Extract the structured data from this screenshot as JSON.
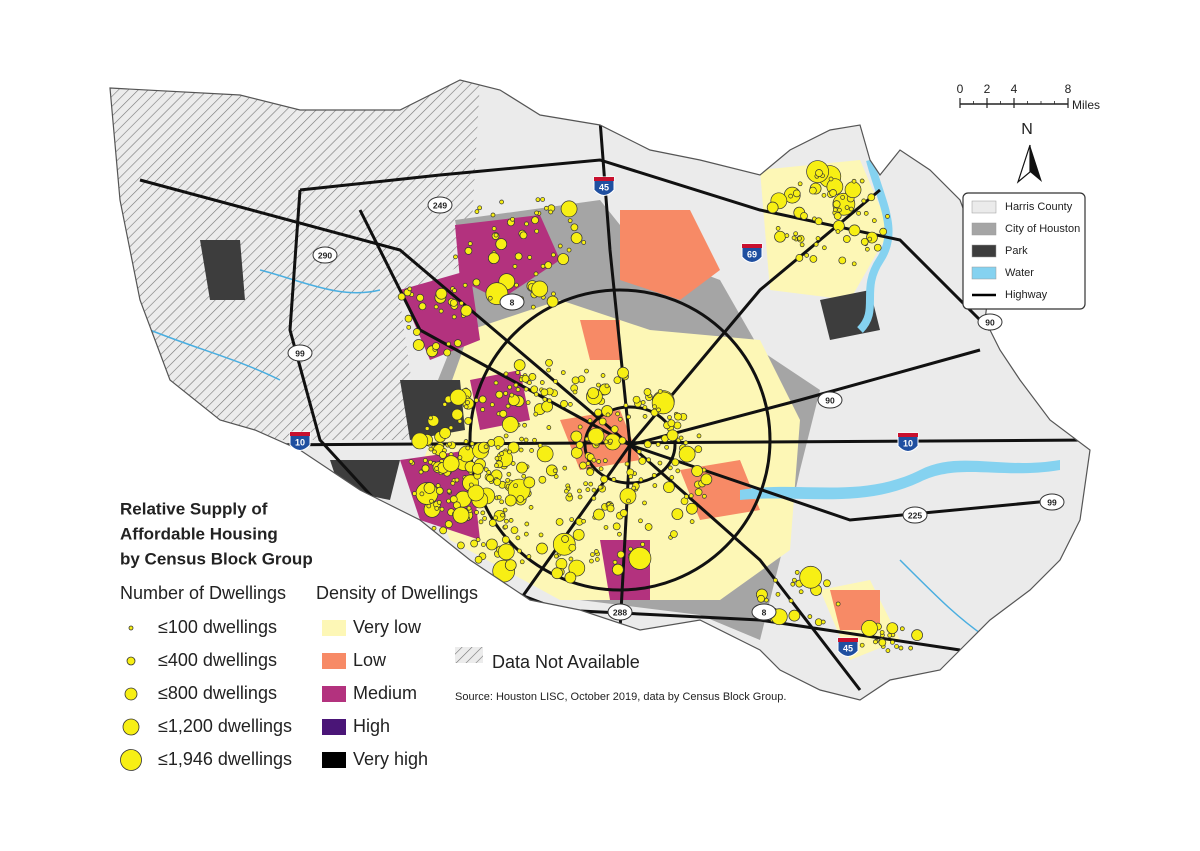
{
  "title_lines": [
    "Relative Supply of",
    "Affordable Housing",
    "by Census Block Group"
  ],
  "number_legend": {
    "title": "Number of Dwellings",
    "items": [
      "≤100 dwellings",
      "≤400 dwellings",
      "≤800 dwellings",
      "≤1,200 dwellings",
      "≤1,946 dwellings"
    ]
  },
  "density_legend": {
    "title": "Density of Dwellings",
    "items": [
      {
        "label": "Very low",
        "color": "#fdf7b6"
      },
      {
        "label": "Low",
        "color": "#f78a66"
      },
      {
        "label": "Medium",
        "color": "#b3327e"
      },
      {
        "label": "High",
        "color": "#4a1577"
      },
      {
        "label": "Very high",
        "color": "#000000"
      }
    ]
  },
  "no_data_label": "Data Not Available",
  "source": "Source: Houston LISC, October 2019, data by Census Block Group.",
  "scale_bar": {
    "ticks": [
      0,
      2,
      4,
      8
    ],
    "unit": "Miles"
  },
  "north_label": "N",
  "map_legend": {
    "items": [
      {
        "label": "Harris County",
        "color": "#ebebeb"
      },
      {
        "label": "City of Houston",
        "color": "#a5a5a5"
      },
      {
        "label": "Park",
        "color": "#3d3d3d"
      },
      {
        "label": "Water",
        "color": "#85d2f0"
      },
      {
        "label": "Highway",
        "color": "#000000"
      }
    ]
  },
  "highway_shields": [
    "45",
    "249",
    "290",
    "8",
    "69",
    "90",
    "99",
    "90",
    "10",
    "10",
    "99",
    "225",
    "288",
    "8",
    "45"
  ]
}
